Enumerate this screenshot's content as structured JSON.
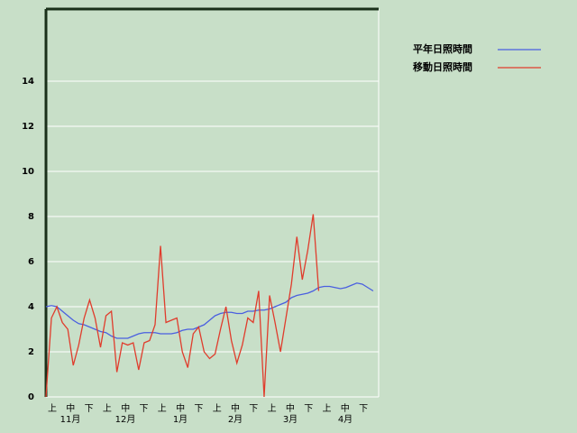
{
  "chart_data": {
    "type": "line",
    "categories": [
      "上",
      "中",
      "下",
      "上",
      "中",
      "下",
      "上",
      "中",
      "下",
      "上",
      "中",
      "下",
      "上",
      "中",
      "下",
      "上",
      "中",
      "下"
    ],
    "months": [
      "11月",
      "12月",
      "1月",
      "2月",
      "3月",
      "4月"
    ],
    "x": [
      0,
      3,
      6,
      9,
      12,
      15,
      18,
      21,
      24,
      27,
      30,
      33,
      36,
      39,
      42,
      45,
      48,
      51,
      54,
      57,
      60,
      63,
      66,
      69,
      72,
      75,
      78,
      81,
      84,
      87,
      90,
      93,
      96,
      99,
      102,
      105,
      108,
      111,
      114,
      117,
      120,
      123,
      126,
      129,
      132,
      135,
      138,
      141,
      144,
      147,
      150,
      153,
      156,
      159,
      162,
      165,
      168,
      171,
      174,
      177,
      180
    ],
    "xlim": [
      0,
      183
    ],
    "ylim": [
      0,
      17.2
    ],
    "yticks": [
      0,
      2,
      4,
      6,
      8,
      10,
      12,
      14
    ],
    "grid": true,
    "series": [
      {
        "name": "平年日照時間",
        "color": "#4a5fe0",
        "values": [
          4.0,
          4.05,
          4.0,
          3.8,
          3.6,
          3.4,
          3.25,
          3.2,
          3.1,
          3.0,
          2.9,
          2.85,
          2.7,
          2.6,
          2.6,
          2.6,
          2.7,
          2.8,
          2.85,
          2.85,
          2.85,
          2.8,
          2.8,
          2.8,
          2.85,
          2.95,
          3.0,
          3.0,
          3.1,
          3.2,
          3.4,
          3.6,
          3.7,
          3.75,
          3.75,
          3.7,
          3.7,
          3.8,
          3.8,
          3.85,
          3.85,
          3.9,
          4.0,
          4.1,
          4.2,
          4.4,
          4.5,
          4.55,
          4.6,
          4.7,
          4.85,
          4.9,
          4.9,
          4.85,
          4.8,
          4.85,
          4.95,
          5.05,
          5.0,
          4.85,
          4.7
        ]
      },
      {
        "name": "移動日照時間",
        "color": "#e03c2c",
        "values": [
          0,
          3.5,
          4.0,
          3.3,
          3.0,
          1.4,
          2.3,
          3.5,
          4.3,
          3.5,
          2.2,
          3.6,
          3.8,
          1.1,
          2.4,
          2.3,
          2.4,
          1.2,
          2.4,
          2.5,
          3.2,
          6.7,
          3.3,
          3.4,
          3.5,
          2.0,
          1.3,
          2.8,
          3.1,
          2.0,
          1.7,
          1.9,
          3.0,
          4.0,
          2.5,
          1.5,
          2.3,
          3.5,
          3.3,
          4.7,
          0,
          4.5,
          3.3,
          2.0,
          3.5,
          5.0,
          7.1,
          5.2,
          6.5,
          8.1,
          4.7,
          null,
          null,
          null,
          null,
          null,
          null,
          null,
          null,
          null,
          null
        ]
      }
    ]
  }
}
